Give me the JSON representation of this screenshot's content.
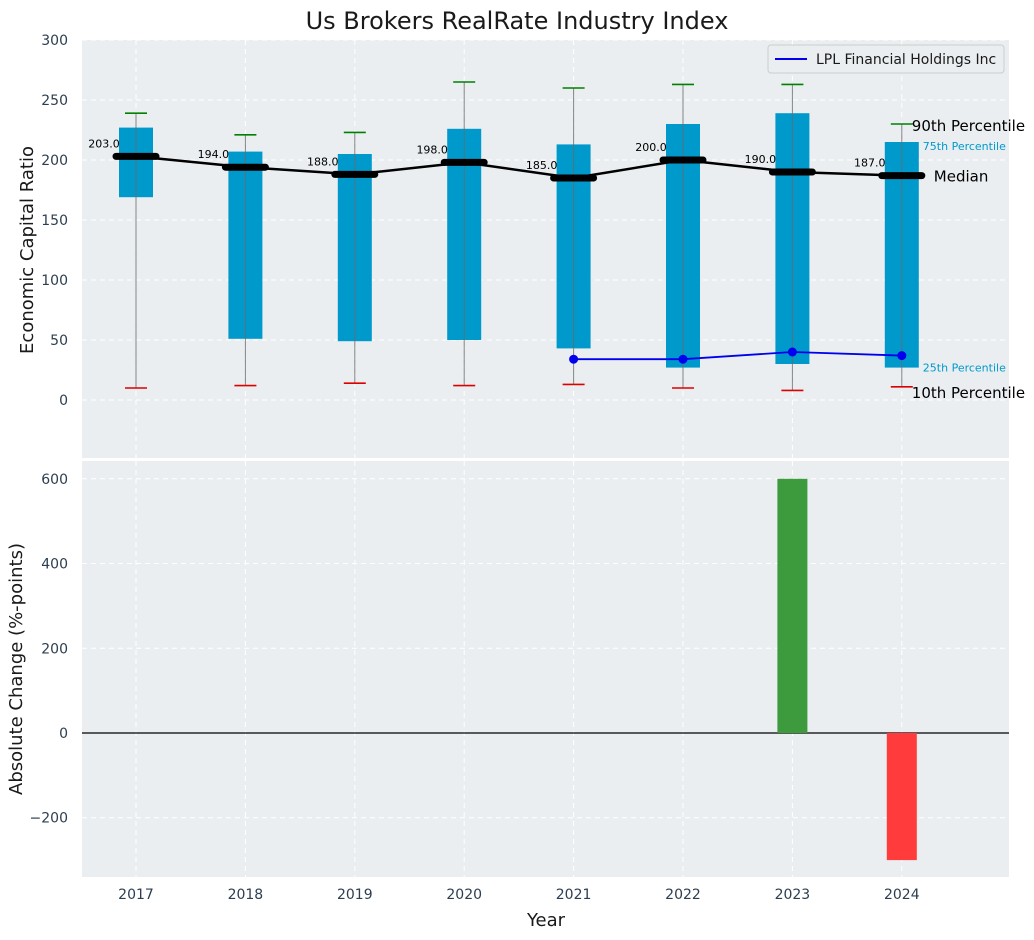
{
  "chart_data": {
    "title": "Us Brokers RealRate Industry Index",
    "type": "box-percentile-with-bar",
    "xlabel": "Year",
    "categories": [
      "2017",
      "2018",
      "2019",
      "2020",
      "2021",
      "2022",
      "2023",
      "2024"
    ],
    "top_panel": {
      "ylabel": "Economic Capital Ratio",
      "ylim": [
        -40,
        300
      ],
      "yticks": [
        "0",
        "50",
        "100",
        "150",
        "200",
        "250",
        "300"
      ],
      "p10": [
        10,
        12,
        14,
        12,
        13,
        10,
        8,
        11
      ],
      "p25": [
        169,
        51,
        49,
        50,
        43,
        27,
        30,
        27
      ],
      "median": [
        203,
        194,
        188,
        198,
        185,
        200,
        190,
        187
      ],
      "median_labels": [
        "203.0",
        "194.0",
        "188.0",
        "198.0",
        "185.0",
        "200.0",
        "190.0",
        "187.0"
      ],
      "p75": [
        227,
        207,
        205,
        226,
        213,
        230,
        239,
        215
      ],
      "p90": [
        239,
        221,
        223,
        265,
        260,
        263,
        263,
        230
      ],
      "company": {
        "name": "LPL Financial Holdings Inc",
        "color": "#0000ee",
        "years": [
          "2021",
          "2022",
          "2023",
          "2024"
        ],
        "values": [
          34,
          34,
          40,
          37
        ]
      },
      "percentile_labels": {
        "p90": "90th Percentile",
        "p75": "75th Percentile",
        "median": "Median",
        "p25": "25th Percentile",
        "p10": "10th Percentile"
      },
      "legend_position": "top-right"
    },
    "bottom_panel": {
      "ylabel": "Absolute Change (%-points)",
      "ylim": [
        -340,
        650
      ],
      "yticks": [
        "−200",
        "0",
        "200",
        "400",
        "600"
      ],
      "bars": [
        {
          "year": "2023",
          "value": 600,
          "color": "#3d9b3d"
        },
        {
          "year": "2024",
          "value": -300,
          "color": "#ff3b3b"
        }
      ]
    },
    "colors": {
      "box": "#0099cc",
      "median_line": "#000000",
      "p90_cap": "#008000",
      "p10_cap": "#dd0000",
      "panel_bg": "#eaeef0",
      "grid": "#ffffff"
    }
  }
}
